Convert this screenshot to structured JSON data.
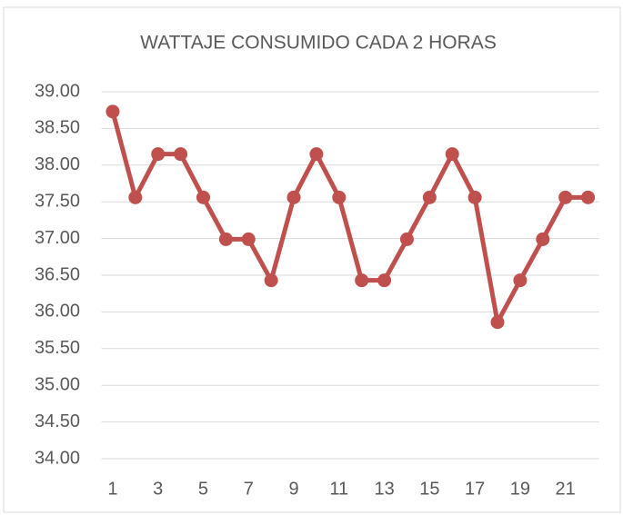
{
  "chart_data": {
    "type": "line",
    "title": "WATTAJE CONSUMIDO CADA 2 HORAS",
    "categories": [
      "1",
      null,
      "3",
      null,
      "5",
      null,
      "7",
      null,
      "9",
      null,
      "11",
      null,
      "13",
      null,
      "15",
      null,
      "17",
      null,
      "19",
      null,
      "21",
      null
    ],
    "series": [
      {
        "name": "Wattaje",
        "color": "#c0504d",
        "values": [
          38.73,
          37.56,
          38.15,
          38.15,
          37.56,
          36.99,
          36.99,
          36.43,
          37.56,
          38.15,
          37.56,
          36.43,
          36.43,
          36.99,
          37.56,
          38.15,
          37.56,
          35.86,
          36.43,
          36.99,
          37.56,
          37.56
        ]
      }
    ],
    "ylim": [
      34,
      39
    ],
    "yticks": [
      {
        "value": 34,
        "label": "34.00"
      },
      {
        "value": 34.5,
        "label": "34.50"
      },
      {
        "value": 35,
        "label": "35.00"
      },
      {
        "value": 35.5,
        "label": "35.50"
      },
      {
        "value": 36,
        "label": "36.00"
      },
      {
        "value": 36.5,
        "label": "36.50"
      },
      {
        "value": 37,
        "label": "37.00"
      },
      {
        "value": 37.5,
        "label": "37.50"
      },
      {
        "value": 38,
        "label": "38.00"
      },
      {
        "value": 38.5,
        "label": "38.50"
      },
      {
        "value": 39,
        "label": "39.00"
      }
    ],
    "grid": true
  }
}
